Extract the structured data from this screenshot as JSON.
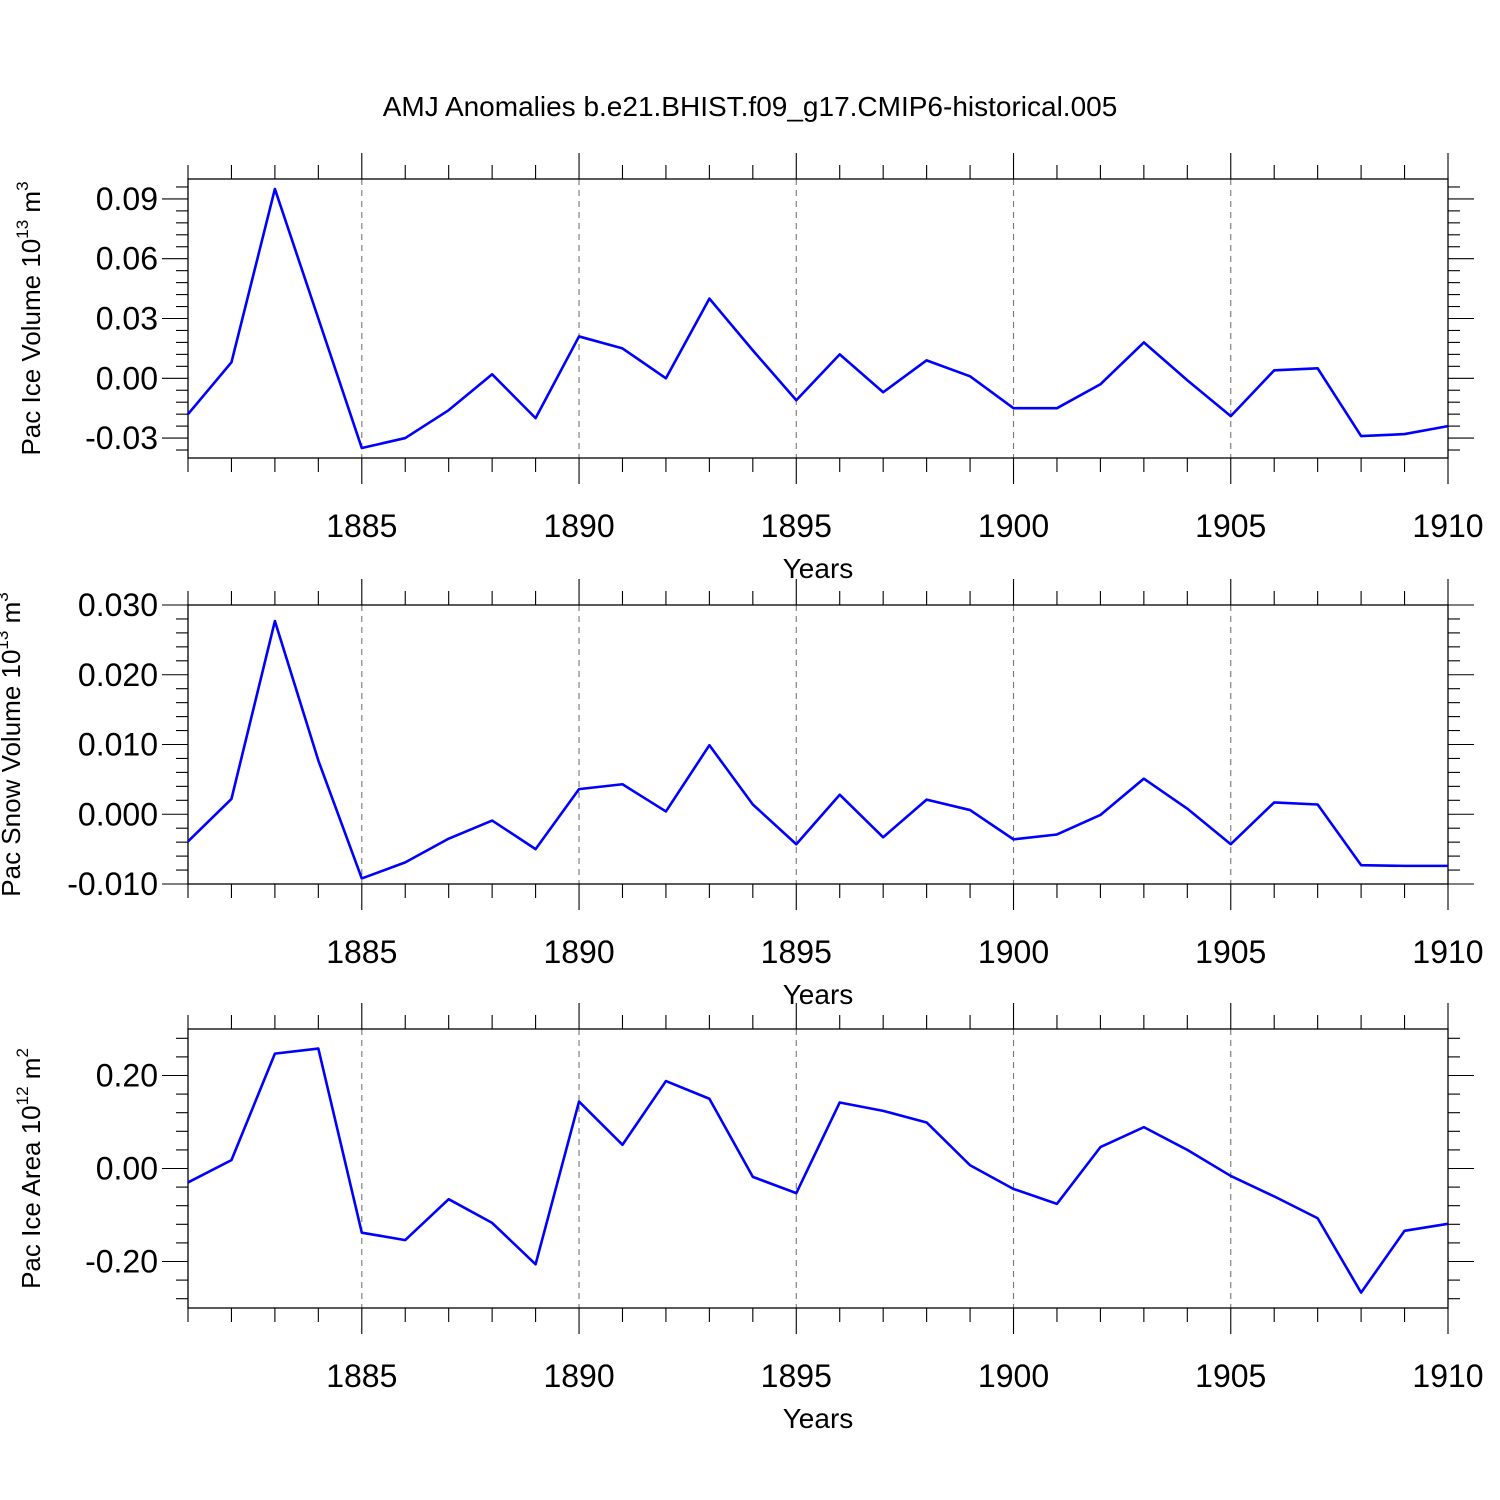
{
  "chart_data": {
    "type": "line",
    "title": "AMJ Anomalies b.e21.BHIST.f09_g17.CMIP6-historical.005",
    "line_color": "#0000ff",
    "x": [
      1881,
      1882,
      1883,
      1884,
      1885,
      1886,
      1887,
      1888,
      1889,
      1890,
      1891,
      1892,
      1893,
      1894,
      1895,
      1896,
      1897,
      1898,
      1899,
      1900,
      1901,
      1902,
      1903,
      1904,
      1905,
      1906,
      1907,
      1908,
      1909,
      1910
    ],
    "xlim": [
      1881,
      1910
    ],
    "xticks": [
      1885,
      1890,
      1895,
      1900,
      1905,
      1910
    ],
    "panels": [
      {
        "name": "ice-volume",
        "ylabel": "Pac Ice Volume 10",
        "ylabel_exp": "13",
        "ylabel_unit": " m",
        "ylabel_unit_exp": "3",
        "xlabel": "Years",
        "ylim": [
          -0.04,
          0.1
        ],
        "yticks": [
          -0.03,
          0.0,
          0.03,
          0.06,
          0.09
        ],
        "ytick_labels": [
          "-0.03",
          "0.00",
          "0.03",
          "0.06",
          "0.09"
        ],
        "values": [
          -0.018,
          0.008,
          0.095,
          0.03,
          -0.035,
          -0.03,
          -0.016,
          0.002,
          -0.02,
          0.021,
          0.015,
          0.0,
          0.04,
          0.014,
          -0.011,
          0.012,
          -0.007,
          0.009,
          0.001,
          -0.015,
          -0.015,
          -0.003,
          0.018,
          -0.001,
          -0.019,
          0.004,
          0.005,
          -0.029,
          -0.028,
          -0.024
        ]
      },
      {
        "name": "snow-volume",
        "ylabel": "Pac Snow Volume 10",
        "ylabel_exp": "13",
        "ylabel_unit": " m",
        "ylabel_unit_exp": "3",
        "xlabel": "Years",
        "ylim": [
          -0.01,
          0.03
        ],
        "yticks": [
          -0.01,
          0.0,
          0.01,
          0.02,
          0.03
        ],
        "ytick_labels": [
          "-0.010",
          "0.000",
          "0.010",
          "0.020",
          "0.030"
        ],
        "values": [
          -0.0039,
          0.0022,
          0.0277,
          0.0077,
          -0.0092,
          -0.0069,
          -0.0035,
          -0.0009,
          -0.005,
          0.0036,
          0.0043,
          0.0004,
          0.0099,
          0.0014,
          -0.0043,
          0.0028,
          -0.0033,
          0.0021,
          0.0006,
          -0.0036,
          -0.0029,
          -0.0001,
          0.0051,
          0.0008,
          -0.0043,
          0.0017,
          0.0014,
          -0.0073,
          -0.0074,
          -0.0074
        ]
      },
      {
        "name": "ice-area",
        "ylabel": "Pac Ice Area 10",
        "ylabel_exp": "12",
        "ylabel_unit": " m",
        "ylabel_unit_exp": "2",
        "xlabel": "Years",
        "ylim": [
          -0.3,
          0.3
        ],
        "yticks": [
          -0.2,
          0.0,
          0.2
        ],
        "ytick_labels": [
          "-0.20",
          "0.00",
          "0.20"
        ],
        "values": [
          -0.03,
          0.018,
          0.247,
          0.258,
          -0.138,
          -0.154,
          -0.066,
          -0.117,
          -0.206,
          0.144,
          0.051,
          0.188,
          0.15,
          -0.018,
          -0.053,
          0.142,
          0.124,
          0.099,
          0.007,
          -0.044,
          -0.076,
          0.046,
          0.089,
          0.04,
          -0.016,
          -0.06,
          -0.107,
          -0.267,
          -0.134,
          -0.119
        ]
      }
    ]
  }
}
